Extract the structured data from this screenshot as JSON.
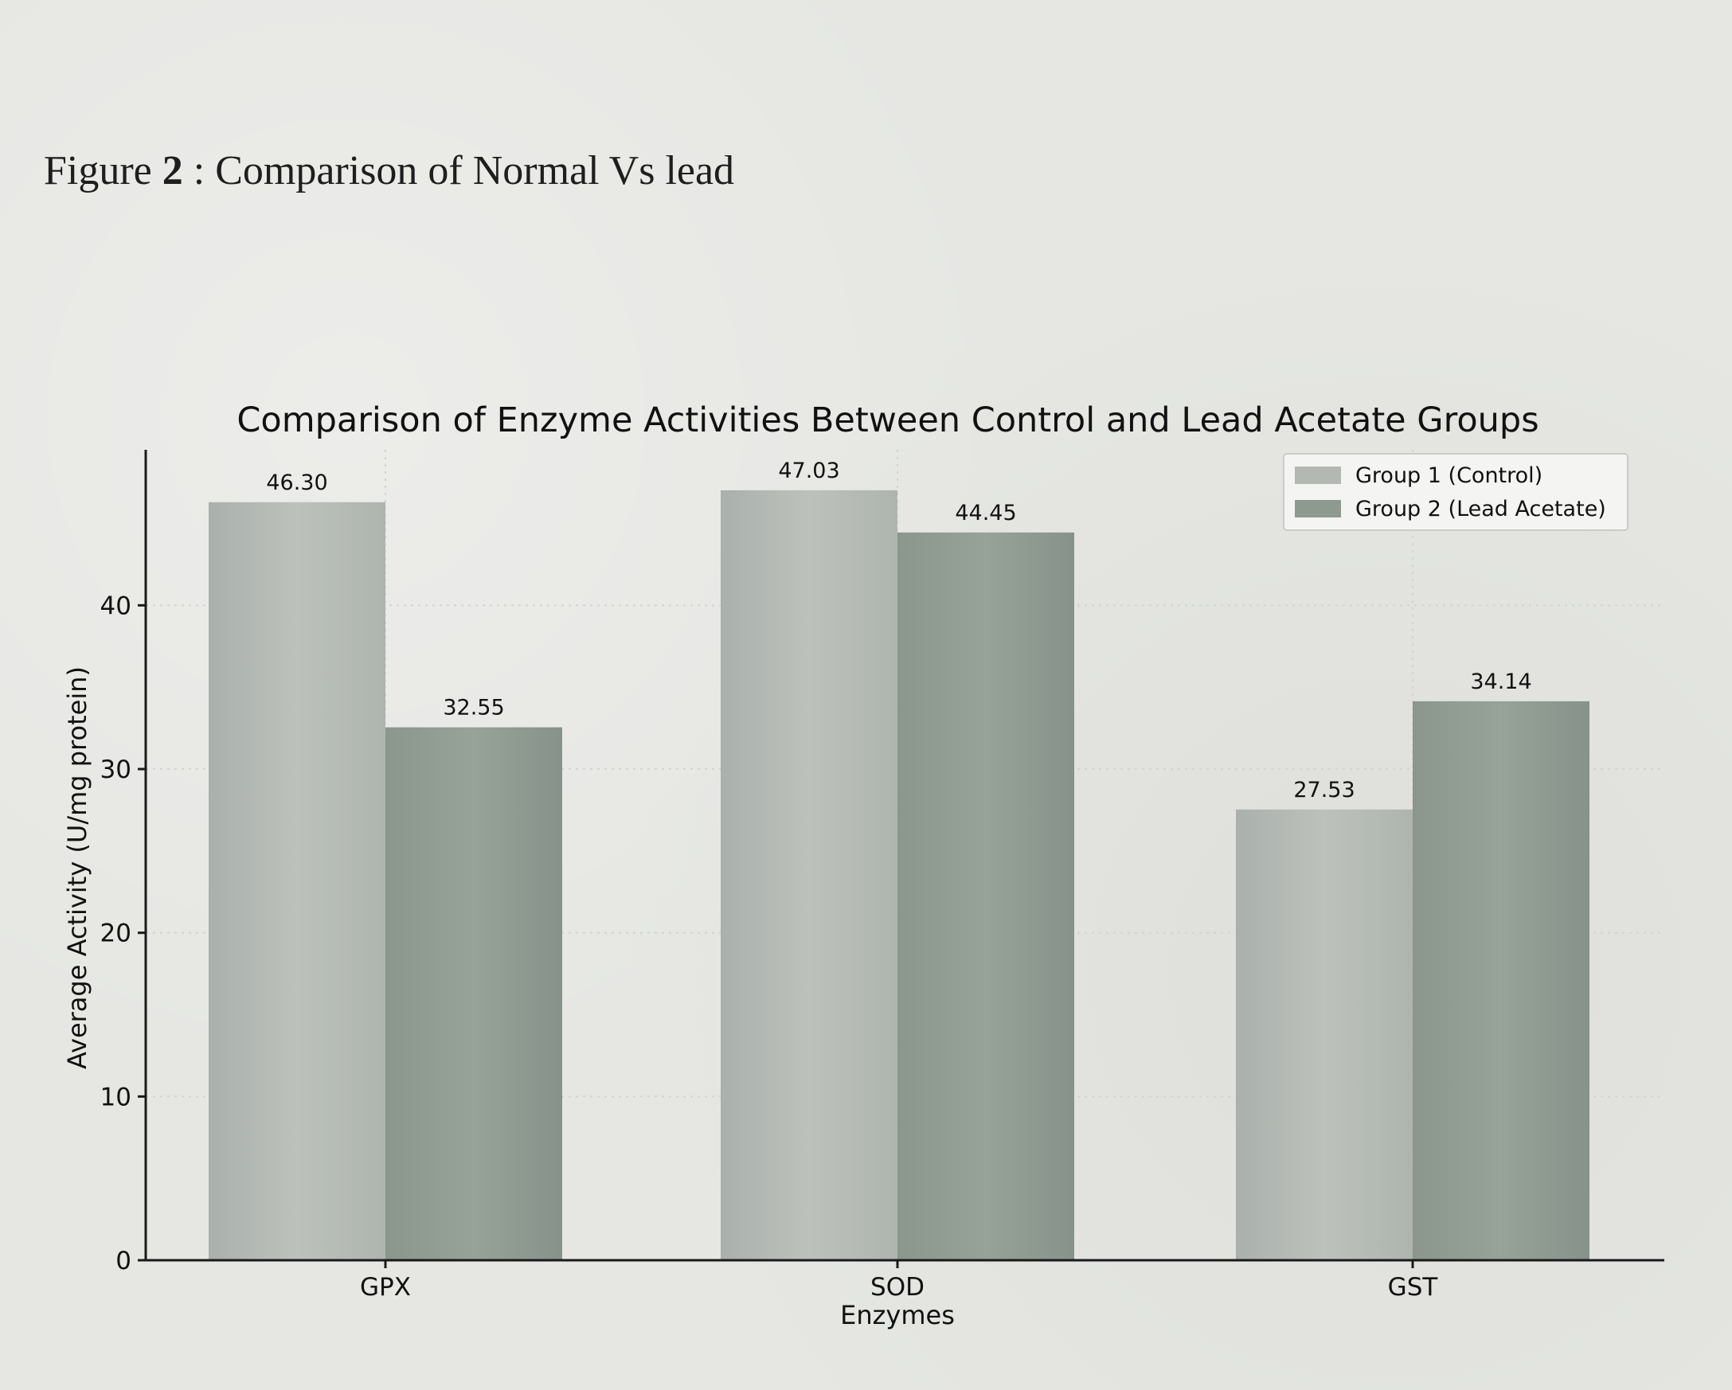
{
  "figure_caption": {
    "label": "Figure",
    "number": "2",
    "sep": " : ",
    "text": "Comparison  of Normal Vs lead"
  },
  "colors": {
    "control": "#b3b8b3",
    "lead": "#8e9a8f",
    "axis": "#1a1a1a",
    "grid": "#d2d4d0",
    "text": "#111111"
  },
  "chart_data": {
    "type": "bar",
    "title": "Comparison of Enzyme Activities Between Control and Lead Acetate Groups",
    "xlabel": "Enzymes",
    "ylabel": "Average Activity (U/mg protein)",
    "categories": [
      "GPX",
      "SOD",
      "GST"
    ],
    "series": [
      {
        "name": "Group 1 (Control)",
        "values": [
          46.3,
          47.03,
          27.53
        ],
        "labels": [
          "46.30",
          "47.03",
          "27.53"
        ]
      },
      {
        "name": "Group 2 (Lead Acetate)",
        "values": [
          32.55,
          44.45,
          34.14
        ],
        "labels": [
          "32.55",
          "44.45",
          "34.14"
        ]
      }
    ],
    "ylim": [
      0,
      49.5
    ],
    "yticks": [
      0,
      10,
      20,
      30,
      40
    ],
    "grid": true,
    "legend_position": "top-right"
  }
}
